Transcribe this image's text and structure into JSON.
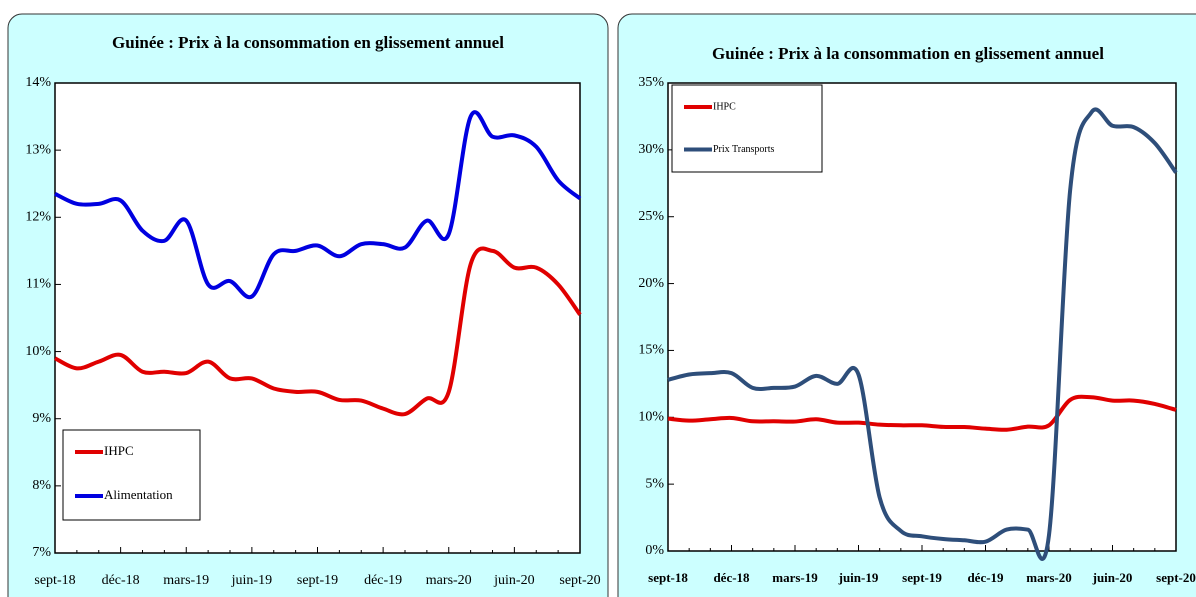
{
  "chart_data": [
    {
      "type": "line",
      "title": "Guinée : Prix à la consommation en glissement annuel",
      "x": [
        "sept-18",
        null,
        null,
        "déc-18",
        null,
        null,
        "mars-19",
        null,
        null,
        "juin-19",
        null,
        null,
        "sept-19",
        null,
        null,
        "déc-19",
        null,
        null,
        "mars-20",
        null,
        null,
        "juin-20",
        null,
        null,
        "sept-20"
      ],
      "series": [
        {
          "name": "IHPC",
          "color": "#e00000",
          "values": [
            9.9,
            9.75,
            9.85,
            9.95,
            9.7,
            9.7,
            9.68,
            9.85,
            9.6,
            9.6,
            9.45,
            9.4,
            9.4,
            9.28,
            9.27,
            9.15,
            9.07,
            9.3,
            9.4,
            11.3,
            11.5,
            11.25,
            11.25,
            11.0,
            10.55
          ]
        },
        {
          "name": "Alimentation",
          "color": "#0000e0",
          "values": [
            12.35,
            12.2,
            12.2,
            12.25,
            11.8,
            11.65,
            11.95,
            11.0,
            11.05,
            10.82,
            11.45,
            11.5,
            11.58,
            11.42,
            11.6,
            11.6,
            11.55,
            11.95,
            11.75,
            13.5,
            13.2,
            13.22,
            13.05,
            12.55,
            12.28
          ]
        }
      ],
      "ylim": [
        7,
        14
      ],
      "yticks": [
        {
          "value": 7,
          "label": "7%"
        },
        {
          "value": 8,
          "label": "8%"
        },
        {
          "value": 9,
          "label": "9%"
        },
        {
          "value": 10,
          "label": "10%"
        },
        {
          "value": 11,
          "label": "11%"
        },
        {
          "value": 12,
          "label": "12%"
        },
        {
          "value": 13,
          "label": "13%"
        },
        {
          "value": 14,
          "label": "14%"
        }
      ],
      "legend": "lower left"
    },
    {
      "type": "line",
      "title": "Guinée : Prix à la consommation en glissement annuel",
      "x": [
        "sept-18",
        null,
        null,
        "déc-18",
        null,
        null,
        "mars-19",
        null,
        null,
        "juin-19",
        null,
        null,
        "sept-19",
        null,
        null,
        "déc-19",
        null,
        null,
        "mars-20",
        null,
        null,
        "juin-20",
        null,
        null,
        "sept-20"
      ],
      "series": [
        {
          "name": "IHPC",
          "color": "#e00000",
          "values": [
            9.9,
            9.75,
            9.85,
            9.95,
            9.7,
            9.7,
            9.68,
            9.85,
            9.6,
            9.6,
            9.45,
            9.4,
            9.4,
            9.28,
            9.27,
            9.15,
            9.07,
            9.3,
            9.4,
            11.3,
            11.5,
            11.25,
            11.25,
            11.0,
            10.55
          ]
        },
        {
          "name": "Prix Transports",
          "color": "#2e4e7a",
          "values": [
            12.8,
            13.2,
            13.3,
            13.3,
            12.2,
            12.2,
            12.3,
            13.1,
            12.5,
            13.2,
            4.0,
            1.5,
            1.1,
            0.9,
            0.8,
            0.7,
            1.6,
            1.6,
            1.2,
            27.0,
            32.8,
            31.8,
            31.7,
            30.5,
            28.3
          ]
        }
      ],
      "ylim": [
        0,
        35
      ],
      "yticks": [
        {
          "value": 0,
          "label": "0%"
        },
        {
          "value": 5,
          "label": "5%"
        },
        {
          "value": 10,
          "label": "10%"
        },
        {
          "value": 15,
          "label": "15%"
        },
        {
          "value": 20,
          "label": "20%"
        },
        {
          "value": 25,
          "label": "25%"
        },
        {
          "value": 30,
          "label": "30%"
        },
        {
          "value": 35,
          "label": "35%"
        }
      ],
      "legend": "upper left"
    }
  ]
}
